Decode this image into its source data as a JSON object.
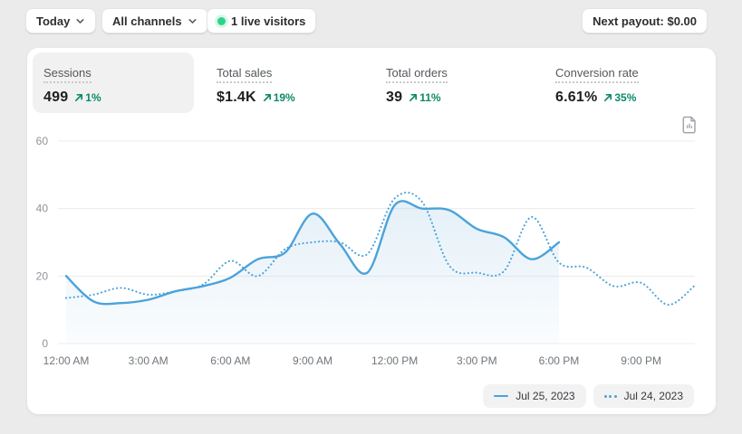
{
  "topbar": {
    "date_range": "Today",
    "channels": "All channels",
    "live_visitors": "1 live visitors",
    "next_payout": "Next payout: $0.00"
  },
  "metrics": {
    "items": [
      {
        "label": "Sessions",
        "value": "499",
        "delta": "1%"
      },
      {
        "label": "Total sales",
        "value": "$1.4K",
        "delta": "19%"
      },
      {
        "label": "Total orders",
        "value": "39",
        "delta": "11%"
      },
      {
        "label": "Conversion rate",
        "value": "6.61%",
        "delta": "35%"
      }
    ]
  },
  "colors": {
    "accent_blue": "#4ba3d9",
    "success_green": "#0d8a68",
    "live_dot_green": "#2ed389"
  },
  "chart_data": {
    "type": "line",
    "title": "Sessions",
    "xlabel": "",
    "ylabel": "",
    "ylim": [
      0,
      60
    ],
    "xlim_hours": [
      0,
      23
    ],
    "grid": "horizontal",
    "legend_position": "bottom-right",
    "line_color": "#4ba3d9",
    "y_ticks": [
      60,
      40,
      20,
      0
    ],
    "x_ticks": [
      {
        "h": 0,
        "label": "12:00 AM"
      },
      {
        "h": 3,
        "label": "3:00 AM"
      },
      {
        "h": 6,
        "label": "6:00 AM"
      },
      {
        "h": 9,
        "label": "9:00 AM"
      },
      {
        "h": 12,
        "label": "12:00 PM"
      },
      {
        "h": 15,
        "label": "3:00 PM"
      },
      {
        "h": 18,
        "label": "6:00 PM"
      },
      {
        "h": 21,
        "label": "9:00 PM"
      }
    ],
    "series": [
      {
        "name": "Jul 25, 2023",
        "style": "solid",
        "x": [
          0,
          1,
          2,
          3,
          4,
          5,
          6,
          7,
          8,
          9,
          10,
          11,
          12,
          13,
          14,
          15,
          16,
          17,
          18
        ],
        "values": [
          20,
          12.5,
          12,
          13,
          15.5,
          17,
          19.5,
          25,
          27,
          38.5,
          29.5,
          21,
          41,
          40,
          39.5,
          34,
          31.5,
          25,
          30
        ]
      },
      {
        "name": "Jul 24, 2023",
        "style": "dotted",
        "x": [
          0,
          1,
          2,
          3,
          4,
          5,
          6,
          7,
          8,
          9,
          10,
          11,
          12,
          13,
          14,
          15,
          16,
          17,
          18,
          19,
          20,
          21,
          22,
          23
        ],
        "values": [
          13.5,
          14.5,
          16.5,
          14.5,
          15.5,
          17.5,
          24.5,
          20,
          28,
          30,
          30,
          26.5,
          43,
          42,
          23,
          21,
          21.5,
          37.5,
          24,
          22.5,
          17,
          18,
          11.5,
          17.5
        ]
      }
    ]
  }
}
